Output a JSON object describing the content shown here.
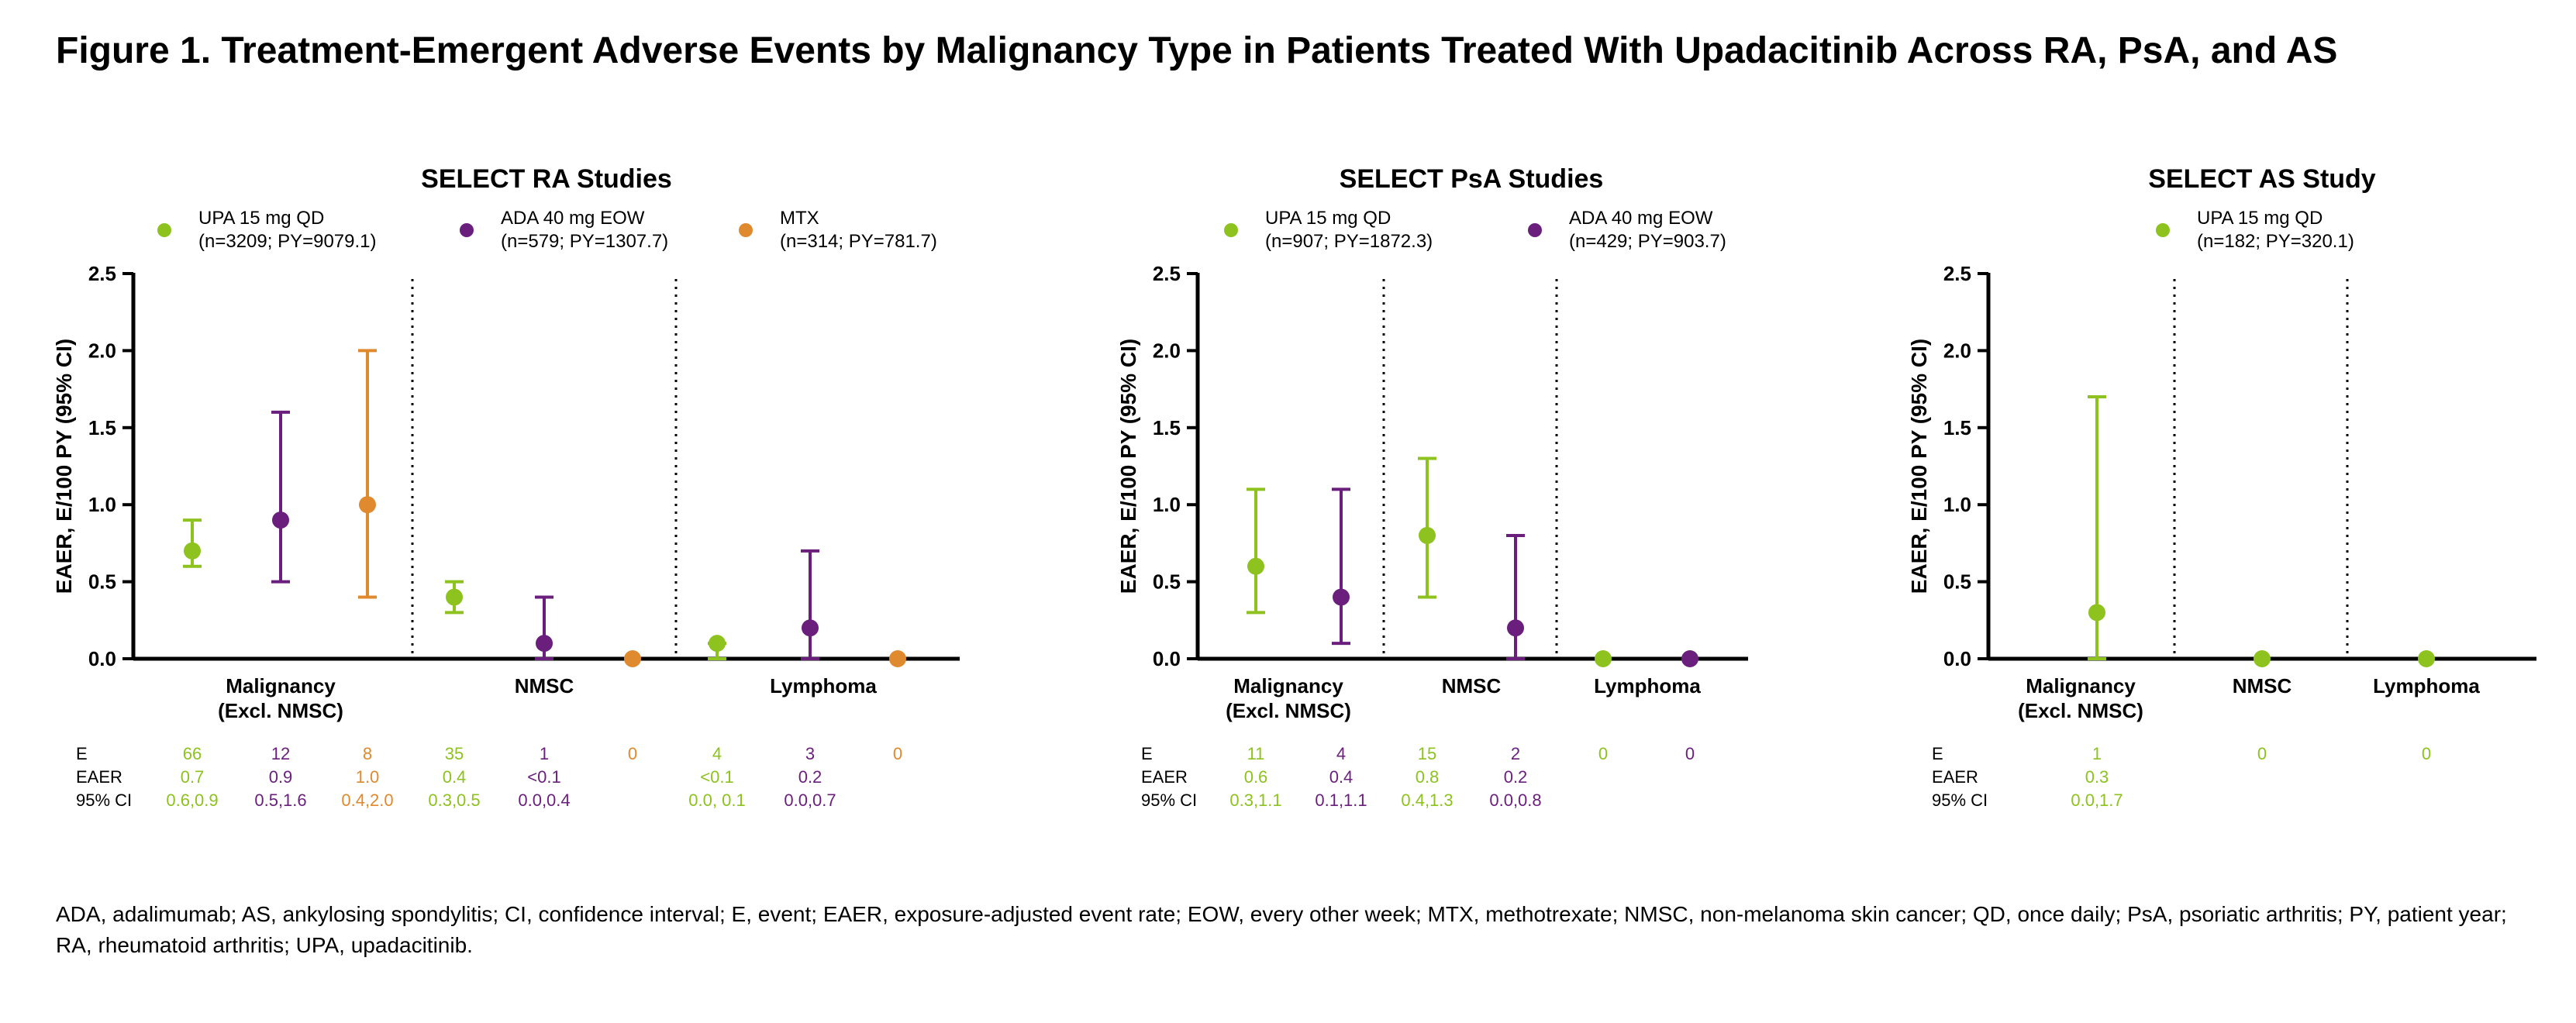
{
  "figure_title": "Figure 1. Treatment-Emergent Adverse Events by Malignancy Type in Patients Treated With Upadacitinib Across RA, PsA, and AS",
  "footnote": "ADA, adalimumab; AS, ankylosing spondylitis; CI, confidence interval; E, event; EAER, exposure-adjusted event rate; EOW, every other week; MTX, methotrexate; NMSC, non-melanoma skin cancer; QD, once daily; PsA, psoriatic arthritis; PY, patient year; RA, rheumatoid arthritis; UPA, upadacitinib.",
  "colors": {
    "upa": "#8dc21f",
    "ada": "#6b1f7d",
    "mtx": "#e08a2f"
  },
  "table_row_labels": [
    "E",
    "EAER",
    "95% CI"
  ],
  "chart_data": [
    {
      "type": "scatter",
      "title": "SELECT RA Studies",
      "ylabel": "EAER, E/100 PY (95% CI)",
      "ylim": [
        0,
        2.5
      ],
      "yticks": [
        "0.0",
        "0.5",
        "1.0",
        "1.5",
        "2.0",
        "2.5"
      ],
      "categories": [
        "Malignancy\n(Excl. NMSC)",
        "NMSC",
        "Lymphoma"
      ],
      "legend": [
        {
          "name": "UPA 15 mg QD",
          "detail": "(n=3209; PY=9079.1)",
          "color_key": "upa"
        },
        {
          "name": "ADA 40 mg EOW",
          "detail": "(n=579; PY=1307.7)",
          "color_key": "ada"
        },
        {
          "name": "MTX",
          "detail": "(n=314; PY=781.7)",
          "color_key": "mtx"
        }
      ],
      "points": [
        {
          "category": 0,
          "series": "upa",
          "value": 0.7,
          "ci": [
            0.6,
            0.9
          ],
          "E": "66",
          "EAER": "0.7",
          "CI": "0.6,0.9"
        },
        {
          "category": 0,
          "series": "ada",
          "value": 0.9,
          "ci": [
            0.5,
            1.6
          ],
          "E": "12",
          "EAER": "0.9",
          "CI": "0.5,1.6"
        },
        {
          "category": 0,
          "series": "mtx",
          "value": 1.0,
          "ci": [
            0.4,
            2.0
          ],
          "E": "8",
          "EAER": "1.0",
          "CI": "0.4,2.0"
        },
        {
          "category": 1,
          "series": "upa",
          "value": 0.4,
          "ci": [
            0.3,
            0.5
          ],
          "E": "35",
          "EAER": "0.4",
          "CI": "0.3,0.5"
        },
        {
          "category": 1,
          "series": "ada",
          "value": 0.1,
          "ci": [
            0.0,
            0.4
          ],
          "E": "1",
          "EAER": "<0.1",
          "CI": "0.0,0.4"
        },
        {
          "category": 1,
          "series": "mtx",
          "value": 0.0,
          "ci": null,
          "E": "0",
          "EAER": "",
          "CI": ""
        },
        {
          "category": 2,
          "series": "upa",
          "value": 0.1,
          "ci": [
            0.0,
            0.1
          ],
          "E": "4",
          "EAER": "<0.1",
          "CI": "0.0, 0.1"
        },
        {
          "category": 2,
          "series": "ada",
          "value": 0.2,
          "ci": [
            0.0,
            0.7
          ],
          "E": "3",
          "EAER": "0.2",
          "CI": "0.0,0.7"
        },
        {
          "category": 2,
          "series": "mtx",
          "value": 0.0,
          "ci": null,
          "E": "0",
          "EAER": "",
          "CI": ""
        }
      ]
    },
    {
      "type": "scatter",
      "title": "SELECT PsA Studies",
      "ylabel": "EAER, E/100 PY (95% CI)",
      "ylim": [
        0,
        2.5
      ],
      "yticks": [
        "0.0",
        "0.5",
        "1.0",
        "1.5",
        "2.0",
        "2.5"
      ],
      "categories": [
        "Malignancy\n(Excl. NMSC)",
        "NMSC",
        "Lymphoma"
      ],
      "legend": [
        {
          "name": "UPA 15 mg QD",
          "detail": "(n=907; PY=1872.3)",
          "color_key": "upa"
        },
        {
          "name": "ADA 40 mg  EOW",
          "detail": "(n=429; PY=903.7)",
          "color_key": "ada"
        }
      ],
      "points": [
        {
          "category": 0,
          "series": "upa",
          "value": 0.6,
          "ci": [
            0.3,
            1.1
          ],
          "E": "11",
          "EAER": "0.6",
          "CI": "0.3,1.1"
        },
        {
          "category": 0,
          "series": "ada",
          "value": 0.4,
          "ci": [
            0.1,
            1.1
          ],
          "E": "4",
          "EAER": "0.4",
          "CI": "0.1,1.1"
        },
        {
          "category": 1,
          "series": "upa",
          "value": 0.8,
          "ci": [
            0.4,
            1.3
          ],
          "E": "15",
          "EAER": "0.8",
          "CI": "0.4,1.3"
        },
        {
          "category": 1,
          "series": "ada",
          "value": 0.2,
          "ci": [
            0.0,
            0.8
          ],
          "E": "2",
          "EAER": "0.2",
          "CI": "0.0,0.8"
        },
        {
          "category": 2,
          "series": "upa",
          "value": 0.0,
          "ci": null,
          "E": "0",
          "EAER": "",
          "CI": ""
        },
        {
          "category": 2,
          "series": "ada",
          "value": 0.0,
          "ci": null,
          "E": "0",
          "EAER": "",
          "CI": ""
        }
      ]
    },
    {
      "type": "scatter",
      "title": "SELECT AS Study",
      "ylabel": "EAER, E/100 PY (95% CI)",
      "ylim": [
        0,
        2.5
      ],
      "yticks": [
        "0.0",
        "0.5",
        "1.0",
        "1.5",
        "2.0",
        "2.5"
      ],
      "categories": [
        "Malignancy\n(Excl. NMSC)",
        "NMSC",
        "Lymphoma"
      ],
      "legend": [
        {
          "name": "UPA 15 mg QD",
          "detail": "(n=182; PY=320.1)",
          "color_key": "upa"
        }
      ],
      "points": [
        {
          "category": 0,
          "series": "upa",
          "value": 0.3,
          "ci": [
            0.0,
            1.7
          ],
          "E": "1",
          "EAER": "0.3",
          "CI": "0.0,1.7"
        },
        {
          "category": 1,
          "series": "upa",
          "value": 0.0,
          "ci": null,
          "E": "0",
          "EAER": "",
          "CI": ""
        },
        {
          "category": 2,
          "series": "upa",
          "value": 0.0,
          "ci": null,
          "E": "0",
          "EAER": "",
          "CI": ""
        }
      ]
    }
  ]
}
